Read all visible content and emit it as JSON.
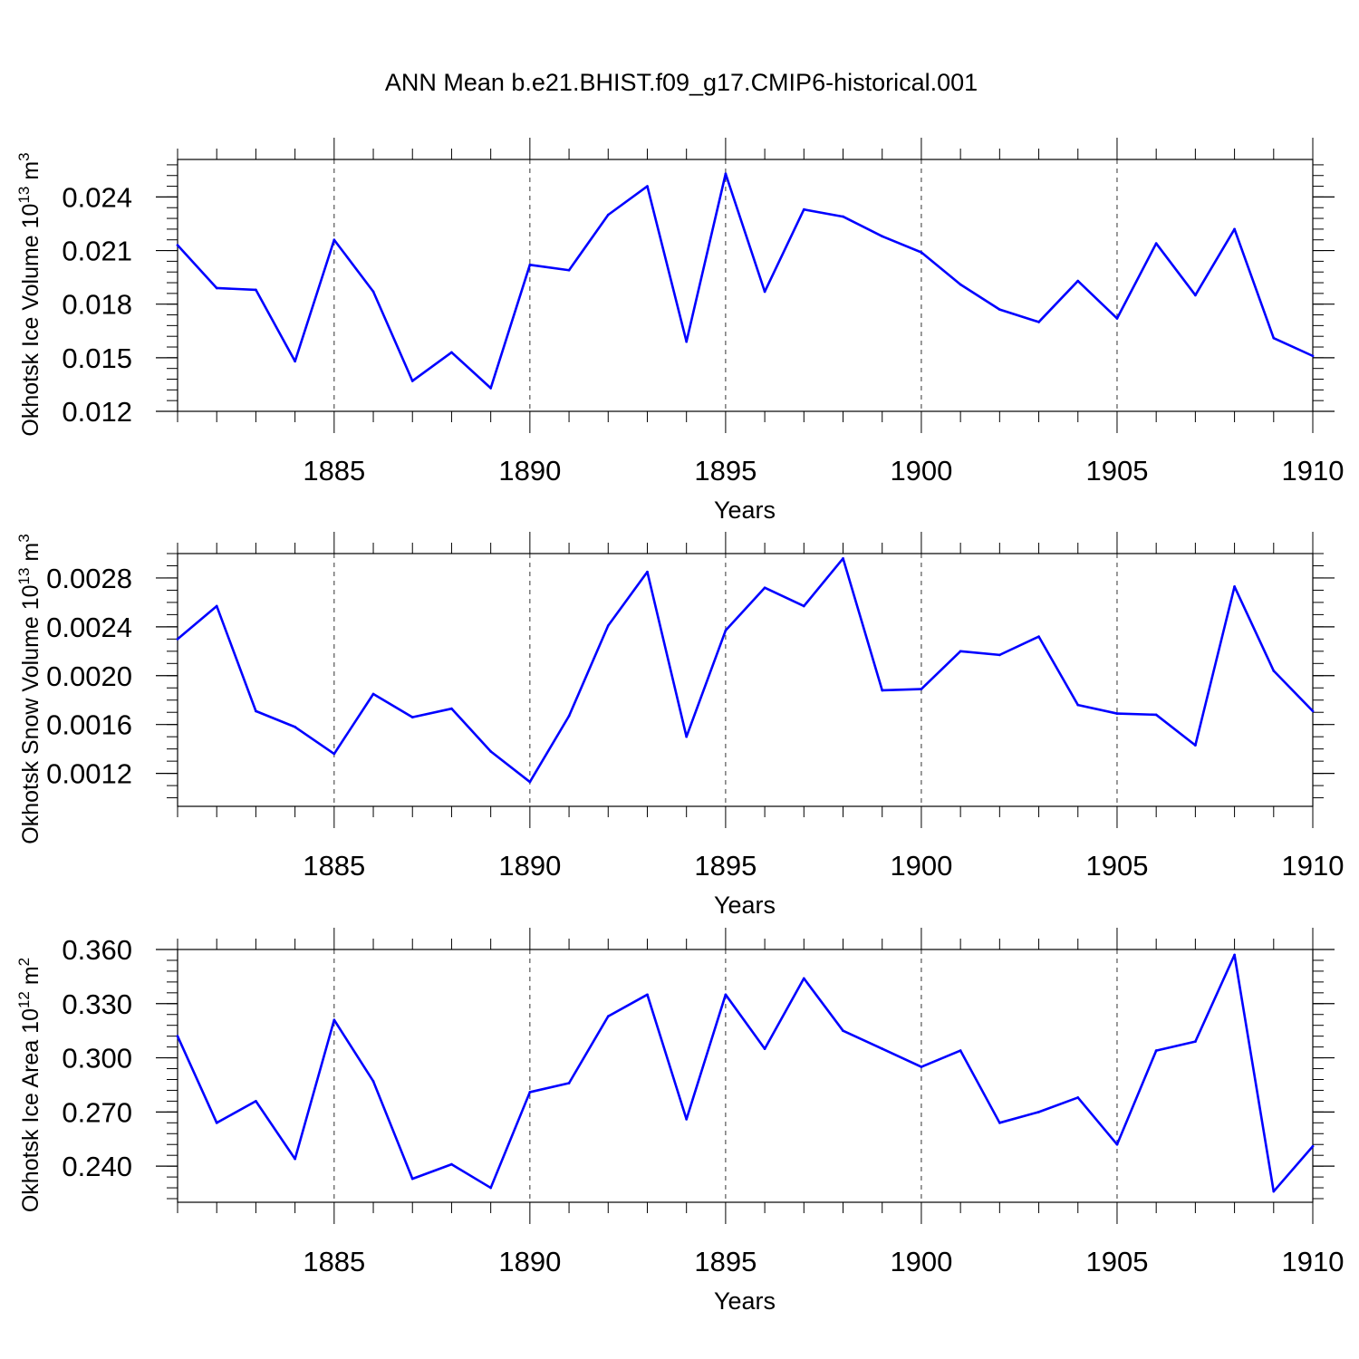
{
  "title": "ANN Mean b.e21.BHIST.f09_g17.CMIP6-historical.001",
  "colors": {
    "line": "#0000ff",
    "axis": "#000000",
    "grid": "#000000"
  },
  "chart_data": [
    {
      "type": "line",
      "ylabel": {
        "main": "Okhotsk Ice Volume 10",
        "sup": "13",
        "unit": " m",
        "unit_sup": "3"
      },
      "xlabel": "Years",
      "xlim": [
        1881,
        1910
      ],
      "ylim": [
        0.012,
        0.0261
      ],
      "x_ticks": [
        "1885",
        "1890",
        "1895",
        "1900",
        "1905",
        "1910"
      ],
      "y_ticks": [
        "0.012",
        "0.015",
        "0.018",
        "0.021",
        "0.024"
      ],
      "y_minor_step": 0.0006,
      "grid": "vertical dashed at major x ticks",
      "x": [
        1881,
        1882,
        1883,
        1884,
        1885,
        1886,
        1887,
        1888,
        1889,
        1890,
        1891,
        1892,
        1893,
        1894,
        1895,
        1896,
        1897,
        1898,
        1899,
        1900,
        1901,
        1902,
        1903,
        1904,
        1905,
        1906,
        1907,
        1908,
        1909,
        1910
      ],
      "values": [
        0.0213,
        0.0189,
        0.0188,
        0.0148,
        0.0216,
        0.0187,
        0.0137,
        0.0153,
        0.0133,
        0.0202,
        0.0199,
        0.023,
        0.0246,
        0.0159,
        0.0253,
        0.0187,
        0.0233,
        0.0229,
        0.0218,
        0.0209,
        0.0191,
        0.0177,
        0.017,
        0.0193,
        0.0172,
        0.0214,
        0.0185,
        0.0222,
        0.0161,
        0.0151
      ]
    },
    {
      "type": "line",
      "ylabel": {
        "main": "Okhotsk Snow Volume 10",
        "sup": "13",
        "unit": " m",
        "unit_sup": "3"
      },
      "xlabel": "Years",
      "xlim": [
        1881,
        1910
      ],
      "ylim": [
        0.00093,
        0.003
      ],
      "x_ticks": [
        "1885",
        "1890",
        "1895",
        "1900",
        "1905",
        "1910"
      ],
      "y_ticks": [
        "0.0012",
        "0.0016",
        "0.0020",
        "0.0024",
        "0.0028"
      ],
      "y_minor_step": 0.0001,
      "grid": "vertical dashed at major x ticks",
      "x": [
        1881,
        1882,
        1883,
        1884,
        1885,
        1886,
        1887,
        1888,
        1889,
        1890,
        1891,
        1892,
        1893,
        1894,
        1895,
        1896,
        1897,
        1898,
        1899,
        1900,
        1901,
        1902,
        1903,
        1904,
        1905,
        1906,
        1907,
        1908,
        1909,
        1910
      ],
      "values": [
        0.0023,
        0.00257,
        0.00171,
        0.00158,
        0.00136,
        0.00185,
        0.00166,
        0.00173,
        0.00138,
        0.00113,
        0.00167,
        0.00241,
        0.00285,
        0.0015,
        0.00237,
        0.00272,
        0.00257,
        0.00296,
        0.00188,
        0.00189,
        0.0022,
        0.00217,
        0.00232,
        0.00176,
        0.00169,
        0.00168,
        0.00143,
        0.00273,
        0.00204,
        0.00171
      ]
    },
    {
      "type": "line",
      "ylabel": {
        "main": "Okhotsk Ice Area 10",
        "sup": "12",
        "unit": " m",
        "unit_sup": "2"
      },
      "xlabel": "Years",
      "xlim": [
        1881,
        1910
      ],
      "ylim": [
        0.22,
        0.36
      ],
      "x_ticks": [
        "1885",
        "1890",
        "1895",
        "1900",
        "1905",
        "1910"
      ],
      "y_ticks": [
        "0.240",
        "0.270",
        "0.300",
        "0.330",
        "0.360"
      ],
      "y_minor_step": 0.006,
      "grid": "vertical dashed at major x ticks",
      "x": [
        1881,
        1882,
        1883,
        1884,
        1885,
        1886,
        1887,
        1888,
        1889,
        1890,
        1891,
        1892,
        1893,
        1894,
        1895,
        1896,
        1897,
        1898,
        1899,
        1900,
        1901,
        1902,
        1903,
        1904,
        1905,
        1906,
        1907,
        1908,
        1909,
        1910
      ],
      "values": [
        0.312,
        0.264,
        0.276,
        0.244,
        0.321,
        0.287,
        0.233,
        0.241,
        0.228,
        0.281,
        0.286,
        0.323,
        0.335,
        0.266,
        0.335,
        0.305,
        0.344,
        0.315,
        0.305,
        0.295,
        0.304,
        0.264,
        0.27,
        0.278,
        0.252,
        0.304,
        0.309,
        0.357,
        0.226,
        0.251
      ]
    }
  ]
}
